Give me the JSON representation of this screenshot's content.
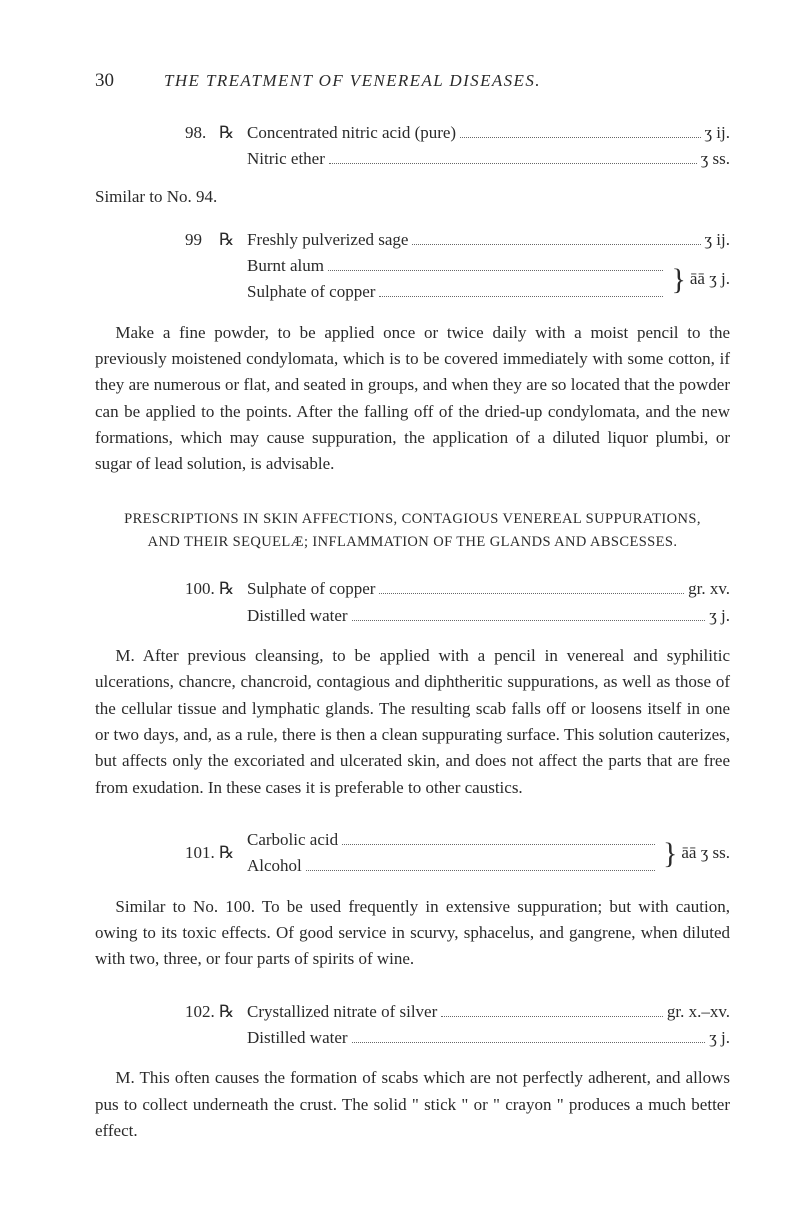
{
  "header": {
    "page_number": "30",
    "running_title": "THE TREATMENT OF VENEREAL DISEASES."
  },
  "rx98": {
    "num": "98.",
    "sym": "℞",
    "line1_ing": "Concentrated nitric acid (pure)",
    "line1_amt": "ʒ ij.",
    "line2_ing": "Nitric ether",
    "line2_amt": "ʒ ss."
  },
  "similar94": "Similar to No. 94.",
  "rx99": {
    "num": "99",
    "sym": "℞",
    "line1_ing": "Freshly pulverized sage",
    "line1_amt": "ʒ ij.",
    "brace1": "Burnt alum",
    "brace2": "Sulphate of copper",
    "brace_amt": "āā ʒ j."
  },
  "para_after_99": "Make a fine powder, to be applied once or twice daily with a moist pencil to the previously moistened condylomata, which is to be covered immediately with some cotton, if they are numerous or flat, and seated in groups, and when they are so located that the powder can be applied to the points. After the falling off of the dried-up condylomata, and the new formations, which may cause suppuration, the application of a diluted liquor plumbi, or sugar of lead solution, is advisable.",
  "section_heading": {
    "line1": "PRESCRIPTIONS IN SKIN AFFECTIONS, CONTAGIOUS VENEREAL SUPPURATIONS,",
    "line2": "AND THEIR SEQUELÆ; INFLAMMATION OF THE GLANDS AND ABSCESSES."
  },
  "rx100": {
    "num": "100.",
    "sym": "℞",
    "line1_ing": "Sulphate of copper",
    "line1_amt": "gr. xv.",
    "line2_ing": "Distilled water",
    "line2_amt": "ʒ j."
  },
  "para_after_100": "M. After previous cleansing, to be applied with a pencil in venereal and syphilitic ulcerations, chancre, chancroid, contagious and diphtheritic suppurations, as well as those of the cellular tissue and lymphatic glands. The resulting scab falls off or loosens itself in one or two days, and, as a rule, there is then a clean suppurating surface. This solution cauterizes, but affects only the excoriated and ulcerated skin, and does not affect the parts that are free from exudation. In these cases it is preferable to other caustics.",
  "rx101": {
    "num": "101.",
    "sym": "℞",
    "brace1": "Carbolic acid",
    "brace2": "Alcohol",
    "brace_amt": "āā ʒ ss."
  },
  "para_after_101": "Similar to No. 100. To be used frequently in extensive suppuration; but with caution, owing to its toxic effects. Of good service in scurvy, sphacelus, and gangrene, when diluted with two, three, or four parts of spirits of wine.",
  "rx102": {
    "num": "102.",
    "sym": "℞",
    "line1_ing": "Crystallized nitrate of silver",
    "line1_amt": "gr. x.–xv.",
    "line2_ing": "Distilled water",
    "line2_amt": "ʒ j."
  },
  "para_after_102": "M. This often causes the formation of scabs which are not perfectly adherent, and allows pus to collect underneath the crust. The solid \" stick \" or \" crayon \" produces a much better effect."
}
